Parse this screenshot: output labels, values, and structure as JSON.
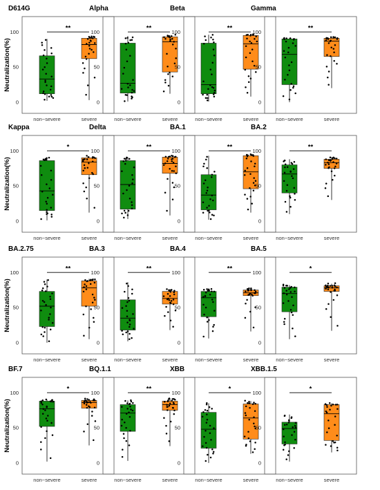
{
  "figure": {
    "colors": {
      "non_severe": "#0f8c0f",
      "severe": "#ff8c1a",
      "points": "#000000",
      "frame": "#555555"
    }
  },
  "chart_data": [
    {
      "type": "box",
      "title": "D614G",
      "ylabel": "Neutralization(%)",
      "categories": [
        "non−severe",
        "severe"
      ],
      "yticks": [
        0,
        50,
        100
      ],
      "ylim": [
        -8,
        112
      ],
      "significance": "**",
      "series": [
        {
          "name": "non−severe",
          "q1": 12,
          "median": 33,
          "q3": 66,
          "whisker_low": 2,
          "whisker_high": 90
        },
        {
          "name": "severe",
          "q1": 62,
          "median": 82,
          "q3": 91,
          "whisker_low": 3,
          "whisker_high": 94
        }
      ]
    },
    {
      "type": "box",
      "title": "Alpha",
      "ylabel": "",
      "categories": [
        "non−severe",
        "severe"
      ],
      "yticks": [
        0,
        50,
        100
      ],
      "ylim": [
        -8,
        112
      ],
      "significance": "**",
      "series": [
        {
          "name": "non−severe",
          "q1": 13,
          "median": 27,
          "q3": 84,
          "whisker_low": 1,
          "whisker_high": 94
        },
        {
          "name": "severe",
          "q1": 43,
          "median": 86,
          "q3": 93,
          "whisker_low": 12,
          "whisker_high": 95
        }
      ]
    },
    {
      "type": "box",
      "title": "Beta",
      "ylabel": "",
      "categories": [
        "non−severe",
        "severe"
      ],
      "yticks": [
        0,
        50,
        100
      ],
      "ylim": [
        -8,
        112
      ],
      "significance": "**",
      "series": [
        {
          "name": "non−severe",
          "q1": 12,
          "median": 25,
          "q3": 84,
          "whisker_low": 1,
          "whisker_high": 96
        },
        {
          "name": "severe",
          "q1": 47,
          "median": 83,
          "q3": 95,
          "whisker_low": 8,
          "whisker_high": 97
        }
      ]
    },
    {
      "type": "box",
      "title": "Gamma",
      "ylabel": "",
      "categories": [
        "non−severe",
        "severe"
      ],
      "yticks": [
        0,
        50,
        100
      ],
      "ylim": [
        -8,
        112
      ],
      "significance": "**",
      "series": [
        {
          "name": "non−severe",
          "q1": 25,
          "median": 68,
          "q3": 90,
          "whisker_low": 0,
          "whisker_high": 91
        },
        {
          "name": "severe",
          "q1": 65,
          "median": 87,
          "q3": 91,
          "whisker_low": 20,
          "whisker_high": 93
        }
      ]
    },
    {
      "type": "box",
      "title": "Kappa",
      "ylabel": "Neutralization(%)",
      "categories": [
        "non−severe",
        "severe"
      ],
      "yticks": [
        0,
        50,
        100
      ],
      "ylim": [
        -8,
        112
      ],
      "significance": "*",
      "series": [
        {
          "name": "non−severe",
          "q1": 15,
          "median": 43,
          "q3": 86,
          "whisker_low": 1,
          "whisker_high": 90
        },
        {
          "name": "severe",
          "q1": 66,
          "median": 84,
          "q3": 90,
          "whisker_low": 12,
          "whisker_high": 92
        }
      ]
    },
    {
      "type": "box",
      "title": "Delta",
      "ylabel": "",
      "categories": [
        "non−severe",
        "severe"
      ],
      "yticks": [
        0,
        50,
        100
      ],
      "ylim": [
        -8,
        112
      ],
      "significance": "**",
      "series": [
        {
          "name": "non−severe",
          "q1": 17,
          "median": 52,
          "q3": 86,
          "whisker_low": 3,
          "whisker_high": 91
        },
        {
          "name": "severe",
          "q1": 68,
          "median": 82,
          "q3": 91,
          "whisker_low": 8,
          "whisker_high": 92
        }
      ]
    },
    {
      "type": "box",
      "title": "BA.1",
      "ylabel": "",
      "categories": [
        "non−severe",
        "severe"
      ],
      "yticks": [
        0,
        50,
        100
      ],
      "ylim": [
        -8,
        112
      ],
      "significance": "**",
      "series": [
        {
          "name": "non−severe",
          "q1": 16,
          "median": 37,
          "q3": 66,
          "whisker_low": 2,
          "whisker_high": 93
        },
        {
          "name": "severe",
          "q1": 46,
          "median": 70,
          "q3": 93,
          "whisker_low": 12,
          "whisker_high": 95
        }
      ]
    },
    {
      "type": "box",
      "title": "BA.2",
      "ylabel": "",
      "categories": [
        "non−severe",
        "severe"
      ],
      "yticks": [
        0,
        50,
        100
      ],
      "ylim": [
        -8,
        112
      ],
      "significance": "**",
      "series": [
        {
          "name": "non−severe",
          "q1": 40,
          "median": 67,
          "q3": 80,
          "whisker_low": 10,
          "whisker_high": 88
        },
        {
          "name": "severe",
          "q1": 75,
          "median": 83,
          "q3": 88,
          "whisker_low": 30,
          "whisker_high": 91
        }
      ]
    },
    {
      "type": "box",
      "title": "BA.2.75",
      "ylabel": "Neutralization(%)",
      "categories": [
        "non−severe",
        "severe"
      ],
      "yticks": [
        0,
        50,
        100
      ],
      "ylim": [
        -8,
        112
      ],
      "significance": "**",
      "series": [
        {
          "name": "non−severe",
          "q1": 23,
          "median": 52,
          "q3": 73,
          "whisker_low": 0,
          "whisker_high": 90
        },
        {
          "name": "severe",
          "q1": 52,
          "median": 78,
          "q3": 88,
          "whisker_low": 5,
          "whisker_high": 91
        }
      ]
    },
    {
      "type": "box",
      "title": "BA.3",
      "ylabel": "",
      "categories": [
        "non−severe",
        "severe"
      ],
      "yticks": [
        0,
        50,
        100
      ],
      "ylim": [
        -8,
        112
      ],
      "significance": "**",
      "series": [
        {
          "name": "non−severe",
          "q1": 18,
          "median": 35,
          "q3": 61,
          "whisker_low": 2,
          "whisker_high": 86
        },
        {
          "name": "severe",
          "q1": 55,
          "median": 63,
          "q3": 73,
          "whisker_low": 18,
          "whisker_high": 76
        }
      ]
    },
    {
      "type": "box",
      "title": "BA.4",
      "ylabel": "",
      "categories": [
        "non−severe",
        "severe"
      ],
      "yticks": [
        0,
        50,
        100
      ],
      "ylim": [
        -8,
        112
      ],
      "significance": "**",
      "series": [
        {
          "name": "non−severe",
          "q1": 37,
          "median": 64,
          "q3": 73,
          "whisker_low": 6,
          "whisker_high": 77
        },
        {
          "name": "severe",
          "q1": 67,
          "median": 71,
          "q3": 75,
          "whisker_low": 16,
          "whisker_high": 77
        }
      ]
    },
    {
      "type": "box",
      "title": "BA.5",
      "ylabel": "",
      "categories": [
        "non−severe",
        "severe"
      ],
      "yticks": [
        0,
        50,
        100
      ],
      "ylim": [
        -8,
        112
      ],
      "significance": "*",
      "series": [
        {
          "name": "non−severe",
          "q1": 44,
          "median": 70,
          "q3": 79,
          "whisker_low": 5,
          "whisker_high": 82
        },
        {
          "name": "severe",
          "q1": 73,
          "median": 78,
          "q3": 81,
          "whisker_low": 17,
          "whisker_high": 84
        }
      ]
    },
    {
      "type": "box",
      "title": "BF.7",
      "ylabel": "Neutralization(%)",
      "categories": [
        "non−severe",
        "severe"
      ],
      "yticks": [
        0,
        50,
        100
      ],
      "ylim": [
        -8,
        112
      ],
      "significance": "*",
      "series": [
        {
          "name": "non−severe",
          "q1": 52,
          "median": 77,
          "q3": 88,
          "whisker_low": 2,
          "whisker_high": 90
        },
        {
          "name": "severe",
          "q1": 78,
          "median": 86,
          "q3": 89,
          "whisker_low": 25,
          "whisker_high": 91
        }
      ]
    },
    {
      "type": "box",
      "title": "BQ.1.1",
      "ylabel": "",
      "categories": [
        "non−severe",
        "severe"
      ],
      "yticks": [
        0,
        50,
        100
      ],
      "ylim": [
        -8,
        112
      ],
      "significance": "**",
      "series": [
        {
          "name": "non−severe",
          "q1": 45,
          "median": 71,
          "q3": 83,
          "whisker_low": 3,
          "whisker_high": 89
        },
        {
          "name": "severe",
          "q1": 75,
          "median": 83,
          "q3": 88,
          "whisker_low": 24,
          "whisker_high": 92
        }
      ]
    },
    {
      "type": "box",
      "title": "XBB",
      "ylabel": "",
      "categories": [
        "non−severe",
        "severe"
      ],
      "yticks": [
        0,
        50,
        100
      ],
      "ylim": [
        -8,
        112
      ],
      "significance": "*",
      "series": [
        {
          "name": "non−severe",
          "q1": 21,
          "median": 48,
          "q3": 72,
          "whisker_low": 0,
          "whisker_high": 85
        },
        {
          "name": "severe",
          "q1": 34,
          "median": 64,
          "q3": 84,
          "whisker_low": 13,
          "whisker_high": 88
        }
      ]
    },
    {
      "type": "box",
      "title": "XBB.1.5",
      "ylabel": "",
      "categories": [
        "non−severe",
        "severe"
      ],
      "yticks": [
        0,
        50,
        100
      ],
      "ylim": [
        -8,
        112
      ],
      "significance": "*",
      "series": [
        {
          "name": "non−severe",
          "q1": 27,
          "median": 49,
          "q3": 58,
          "whisker_low": 2,
          "whisker_high": 69
        },
        {
          "name": "severe",
          "q1": 32,
          "median": 70,
          "q3": 83,
          "whisker_low": 15,
          "whisker_high": 85
        }
      ]
    }
  ]
}
